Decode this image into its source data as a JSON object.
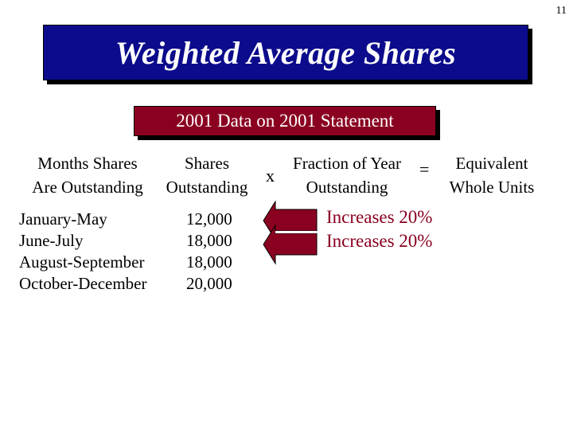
{
  "page_number": "11",
  "title": "Weighted Average Shares",
  "subtitle": "2001 Data on 2001 Statement",
  "headers": {
    "months": [
      "Months Shares",
      "Are Outstanding"
    ],
    "shares": [
      "Shares",
      "Outstanding"
    ],
    "fraction": [
      "Fraction of Year",
      "Outstanding"
    ],
    "equivalent": [
      "Equivalent",
      "Whole Units"
    ],
    "times": "x",
    "equals": "="
  },
  "rows": [
    {
      "period": "January-May",
      "shares": "12,000"
    },
    {
      "period": "June-July",
      "shares": "18,000"
    },
    {
      "period": "August-September",
      "shares": "18,000"
    },
    {
      "period": "October-December",
      "shares": "20,000"
    }
  ],
  "notes": [
    "Increases 20%",
    "Increases 20%"
  ],
  "colors": {
    "title_bg": "#0b0b8c",
    "subtitle_bg": "#8a0020",
    "accent": "#8a0020"
  }
}
